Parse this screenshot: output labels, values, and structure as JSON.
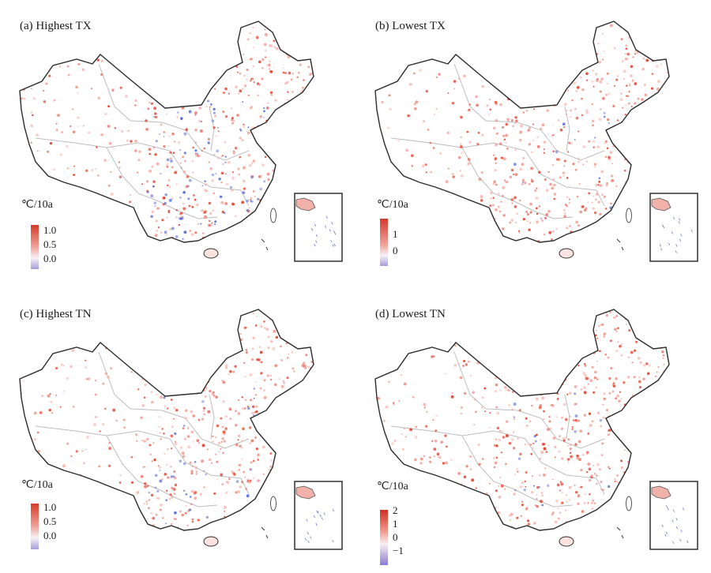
{
  "colors": {
    "warm": "#e4442f",
    "warm_light": "#f3a39a",
    "cool": "#5b6fd6",
    "border": "#2b2b2b",
    "province": "#bdbdbd"
  },
  "panels": [
    {
      "title": "(a) Highest TX",
      "unit": "℃/10a",
      "ticks": [
        "1.0",
        "0.5",
        "0.0"
      ],
      "legend": "linear-gradient(to bottom, #d8392a, #f0a49a 50%, #f7f1f6 75%, #a79ddb)",
      "cool_share": 0.3
    },
    {
      "title": "(b) Lowest TX",
      "unit": "℃/10a",
      "ticks": [
        "1",
        "0"
      ],
      "legend": "linear-gradient(to bottom, #d23a2b, #f1a39b 55%, #f7f2f6 78%, #a89cdb)",
      "cool_share": 0.05
    },
    {
      "title": "(c) Highest TN",
      "unit": "℃/10a",
      "ticks": [
        "1.0",
        "0.5",
        "0.0"
      ],
      "legend": "linear-gradient(to bottom, #d8392a, #f0a49a 50%, #f7f1f6 75%, #a79ddb)",
      "cool_share": 0.12
    },
    {
      "title": "(d) Lowest TN",
      "unit": "℃/10a",
      "ticks": [
        "2",
        "1",
        "0",
        "−1"
      ],
      "legend": "linear-gradient(to bottom, #cf2f22, #ee8c7f 35%, #f7eff2 62%, #8a7bd2)",
      "cool_share": 0.08
    }
  ]
}
